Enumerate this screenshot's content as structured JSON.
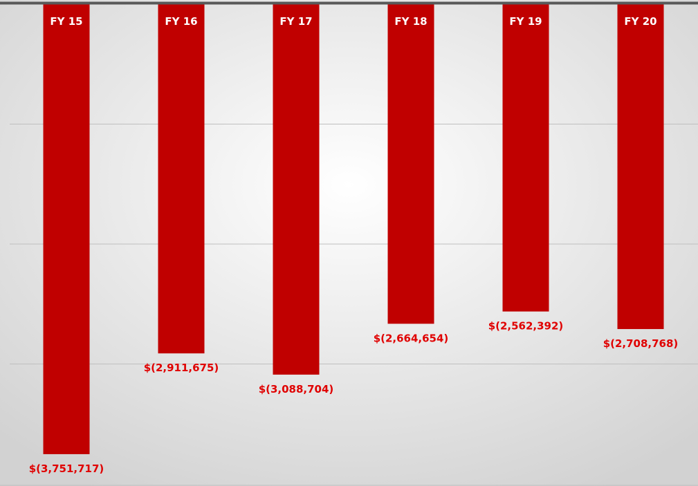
{
  "colors": {
    "bar": "#c00000",
    "value_label": "#e00000",
    "category_label": "#ffffff",
    "axis_line": "#595959",
    "gridline": "#bfbfbf",
    "background_center": "#ffffff",
    "background_edge": "#d2d2d2"
  },
  "chart_data": {
    "type": "bar",
    "title": "",
    "xlabel": "",
    "ylabel": "",
    "categories": [
      "FY 15",
      "FY 16",
      "FY 17",
      "FY 18",
      "FY 19",
      "FY 20"
    ],
    "values": [
      -3751717,
      -2911675,
      -3088704,
      -2664654,
      -2562392,
      -2708768
    ],
    "value_labels": [
      "$(3,751,717)",
      "$(2,911,675)",
      "$(3,088,704)",
      "$(2,664,654)",
      "$(2,562,392)",
      "$(2,708,768)"
    ],
    "ylim": [
      -4000000,
      0
    ],
    "gridlines": [
      -1000000,
      -2000000,
      -3000000
    ],
    "grid": true,
    "legend": "none",
    "category_label_position": "inside-top-of-bar",
    "value_label_position": "below-bar"
  }
}
